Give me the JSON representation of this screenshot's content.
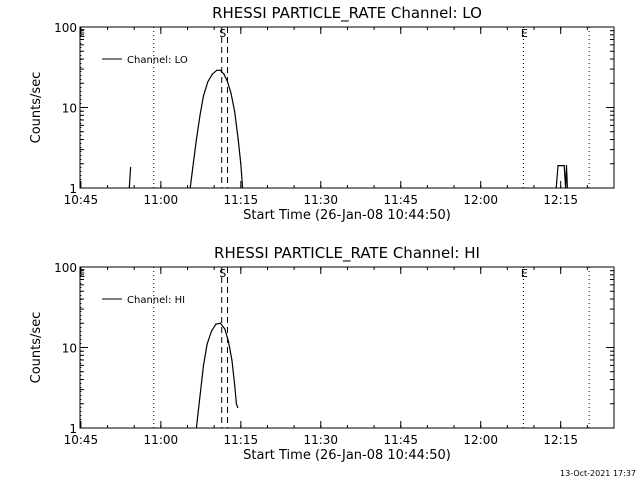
{
  "chart_data": [
    {
      "type": "line",
      "title": "RHESSI PARTICLE_RATE Channel: LO",
      "xlabel": "Start Time (26-Jan-08 10:44:50)",
      "ylabel": "Counts/sec",
      "y_scale": "log",
      "ylim": [
        1,
        100
      ],
      "xlim": [
        "10:44:50",
        "12:25:00"
      ],
      "x_ticks": [
        "10:45",
        "11:00",
        "11:15",
        "11:30",
        "11:45",
        "12:00",
        "12:15"
      ],
      "y_ticks": [
        "1",
        "10",
        "100"
      ],
      "legend": "top-left",
      "series": [
        {
          "name": "Channel: LO",
          "segments": [
            [
              [
                "10:54:05",
                1.0
              ],
              [
                "10:54:20",
                1.8
              ]
            ],
            [
              [
                "11:05:30",
                1.0
              ],
              [
                "11:06:00",
                1.8
              ],
              [
                "11:06:40",
                4.0
              ],
              [
                "11:07:20",
                8.0
              ],
              [
                "11:08:00",
                14.0
              ],
              [
                "11:08:50",
                21.0
              ],
              [
                "11:09:40",
                26.0
              ],
              [
                "11:10:30",
                29.0
              ],
              [
                "11:11:10",
                29.0
              ],
              [
                "11:11:50",
                26.0
              ],
              [
                "11:12:30",
                21.0
              ],
              [
                "11:13:10",
                15.0
              ],
              [
                "11:13:50",
                9.0
              ],
              [
                "11:14:30",
                4.0
              ],
              [
                "11:15:00",
                2.0
              ],
              [
                "11:15:20",
                1.0
              ]
            ],
            [
              [
                "12:14:10",
                1.0
              ],
              [
                "12:14:30",
                1.9
              ],
              [
                "12:15:40",
                1.9
              ],
              [
                "12:15:55",
                1.0
              ],
              [
                "12:16:05",
                1.9
              ],
              [
                "12:16:15",
                1.0
              ]
            ]
          ]
        }
      ],
      "markers": [
        {
          "label": "E",
          "time": "10:45:00",
          "style": "dotted"
        },
        {
          "label": "",
          "time": "10:58:40",
          "style": "dotted"
        },
        {
          "label": "S",
          "time": "11:11:25",
          "style": "dashed"
        },
        {
          "label": "",
          "time": "11:12:30",
          "style": "dashed"
        },
        {
          "label": "E",
          "time": "12:08:00",
          "style": "dotted"
        },
        {
          "label": "",
          "time": "12:20:20",
          "style": "dotted"
        }
      ]
    },
    {
      "type": "line",
      "title": "RHESSI PARTICLE_RATE Channel: HI",
      "xlabel": "Start Time (26-Jan-08 10:44:50)",
      "ylabel": "Counts/sec",
      "y_scale": "log",
      "ylim": [
        1,
        100
      ],
      "xlim": [
        "10:44:50",
        "12:25:00"
      ],
      "x_ticks": [
        "10:45",
        "11:00",
        "11:15",
        "11:30",
        "11:45",
        "12:00",
        "12:15"
      ],
      "y_ticks": [
        "1",
        "10",
        "100"
      ],
      "legend": "top-left",
      "series": [
        {
          "name": "Channel: HI",
          "segments": [
            [
              [
                "11:06:40",
                1.0
              ],
              [
                "11:07:20",
                2.5
              ],
              [
                "11:08:00",
                6.0
              ],
              [
                "11:08:40",
                11.0
              ],
              [
                "11:09:30",
                16.0
              ],
              [
                "11:10:20",
                19.5
              ],
              [
                "11:11:10",
                20.0
              ],
              [
                "11:12:00",
                17.0
              ],
              [
                "11:12:40",
                12.0
              ],
              [
                "11:13:20",
                7.0
              ],
              [
                "11:13:50",
                3.5
              ],
              [
                "11:14:10",
                2.0
              ],
              [
                "11:14:25",
                1.8
              ]
            ]
          ]
        }
      ],
      "markers": [
        {
          "label": "E",
          "time": "10:45:00",
          "style": "dotted"
        },
        {
          "label": "",
          "time": "10:58:40",
          "style": "dotted"
        },
        {
          "label": "S",
          "time": "11:11:25",
          "style": "dashed"
        },
        {
          "label": "",
          "time": "11:12:30",
          "style": "dashed"
        },
        {
          "label": "E",
          "time": "12:08:00",
          "style": "dotted"
        },
        {
          "label": "",
          "time": "12:20:20",
          "style": "dotted"
        }
      ]
    }
  ],
  "footer": {
    "timestamp": "13-Oct-2021 17:37"
  }
}
